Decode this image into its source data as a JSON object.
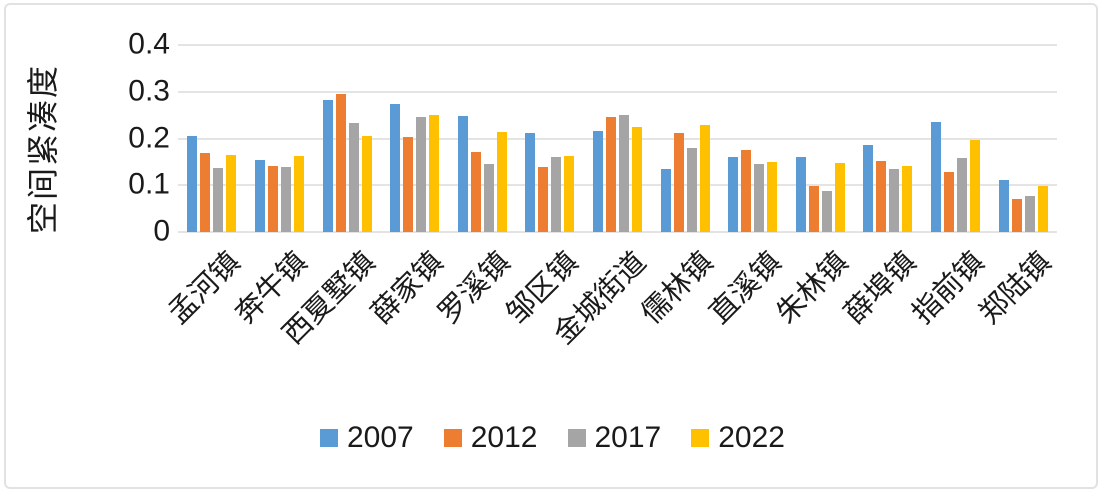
{
  "chart_data": {
    "type": "bar",
    "title": "",
    "xlabel": "",
    "ylabel": "空间紧凑度",
    "ylim": [
      0,
      0.4
    ],
    "ytick_labels": [
      "0",
      "0.1",
      "0.2",
      "0.3",
      "0.4"
    ],
    "ytick_values": [
      0,
      0.1,
      0.2,
      0.3,
      0.4
    ],
    "grid": "horizontal",
    "legend_position": "bottom",
    "x_label_rotation_deg": 45,
    "categories": [
      "孟河镇",
      "奔牛镇",
      "西夏墅镇",
      "薛家镇",
      "罗溪镇",
      "邹区镇",
      "金城街道",
      "儒林镇",
      "直溪镇",
      "朱林镇",
      "薛埠镇",
      "指前镇",
      "郑陆镇"
    ],
    "series": [
      {
        "name": "2007",
        "color": "#5B9BD5",
        "values": [
          0.205,
          0.153,
          0.283,
          0.273,
          0.248,
          0.212,
          0.216,
          0.134,
          0.16,
          0.16,
          0.187,
          0.236,
          0.111
        ]
      },
      {
        "name": "2012",
        "color": "#ED7D31",
        "values": [
          0.17,
          0.141,
          0.295,
          0.204,
          0.172,
          0.14,
          0.247,
          0.211,
          0.176,
          0.099,
          0.151,
          0.128,
          0.07
        ]
      },
      {
        "name": "2017",
        "color": "#A5A5A5",
        "values": [
          0.137,
          0.14,
          0.233,
          0.246,
          0.145,
          0.161,
          0.25,
          0.179,
          0.146,
          0.087,
          0.134,
          0.158,
          0.078
        ]
      },
      {
        "name": "2022",
        "color": "#FFC000",
        "values": [
          0.165,
          0.162,
          0.205,
          0.25,
          0.213,
          0.163,
          0.224,
          0.229,
          0.15,
          0.148,
          0.142,
          0.197,
          0.098
        ]
      }
    ],
    "colors": {
      "gridline": "#e4e4e4",
      "frame_border": "#e2e2e2",
      "text": "#1a1a1a",
      "background": "#ffffff"
    }
  }
}
